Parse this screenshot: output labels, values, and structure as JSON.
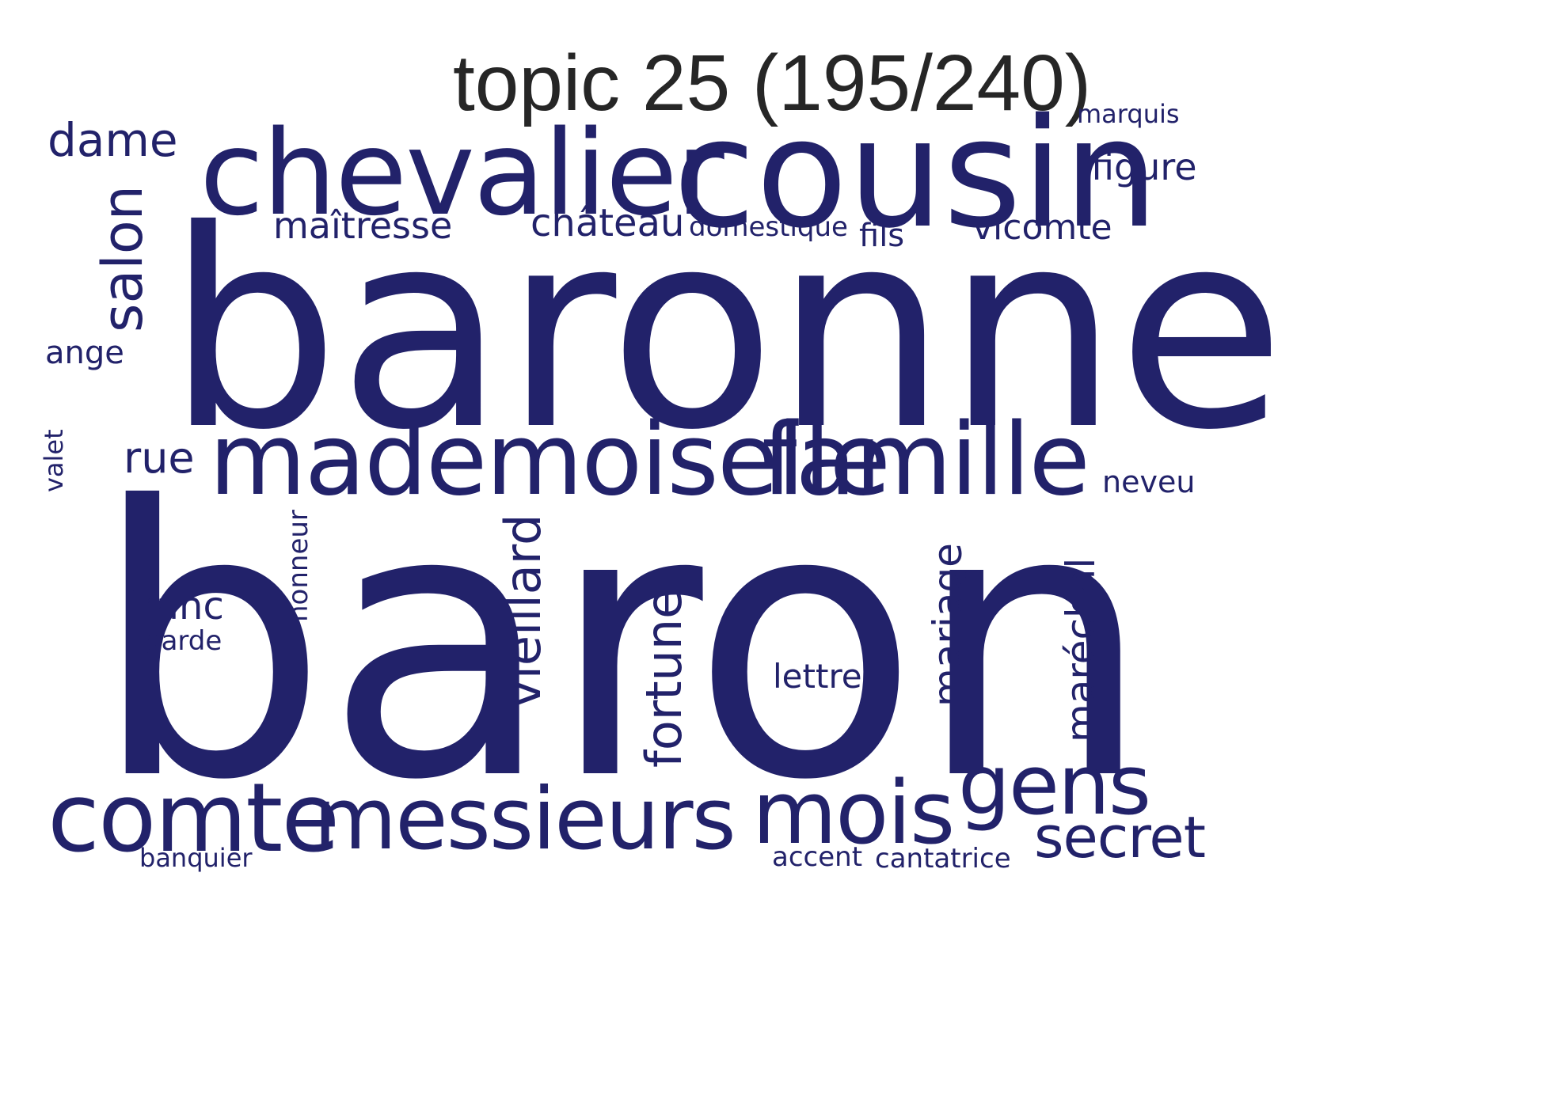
{
  "title": "topic 25 (195/240)",
  "word_color": "#22226a",
  "words": {
    "baron": "baron",
    "baronne": "baronne",
    "cousin": "cousin",
    "chevalier": "chevalier",
    "mademoiselle": "mademoiselle",
    "famille": "famille",
    "comte": "comte",
    "messieurs": "messieurs",
    "mois": "mois",
    "gens": "gens",
    "secret": "secret",
    "salon": "salon",
    "vieillard": "vieillard",
    "fortune": "fortune",
    "mariage": "mariage",
    "marechal": "maréchal",
    "dame": "dame",
    "rue": "rue",
    "maitresse": "maîtresse",
    "chateau": "château",
    "domestique": "domestique",
    "fils": "fils",
    "vicomte": "vicomte",
    "figure": "figure",
    "marquis": "marquis",
    "ange": "ange",
    "valet": "valet",
    "neveu": "neveu",
    "honneur": "honneur",
    "franc": "franc",
    "garde": "garde",
    "lettre": "lettre",
    "banquier": "banquier",
    "accent": "accent",
    "cantatrice": "cantatrice"
  }
}
